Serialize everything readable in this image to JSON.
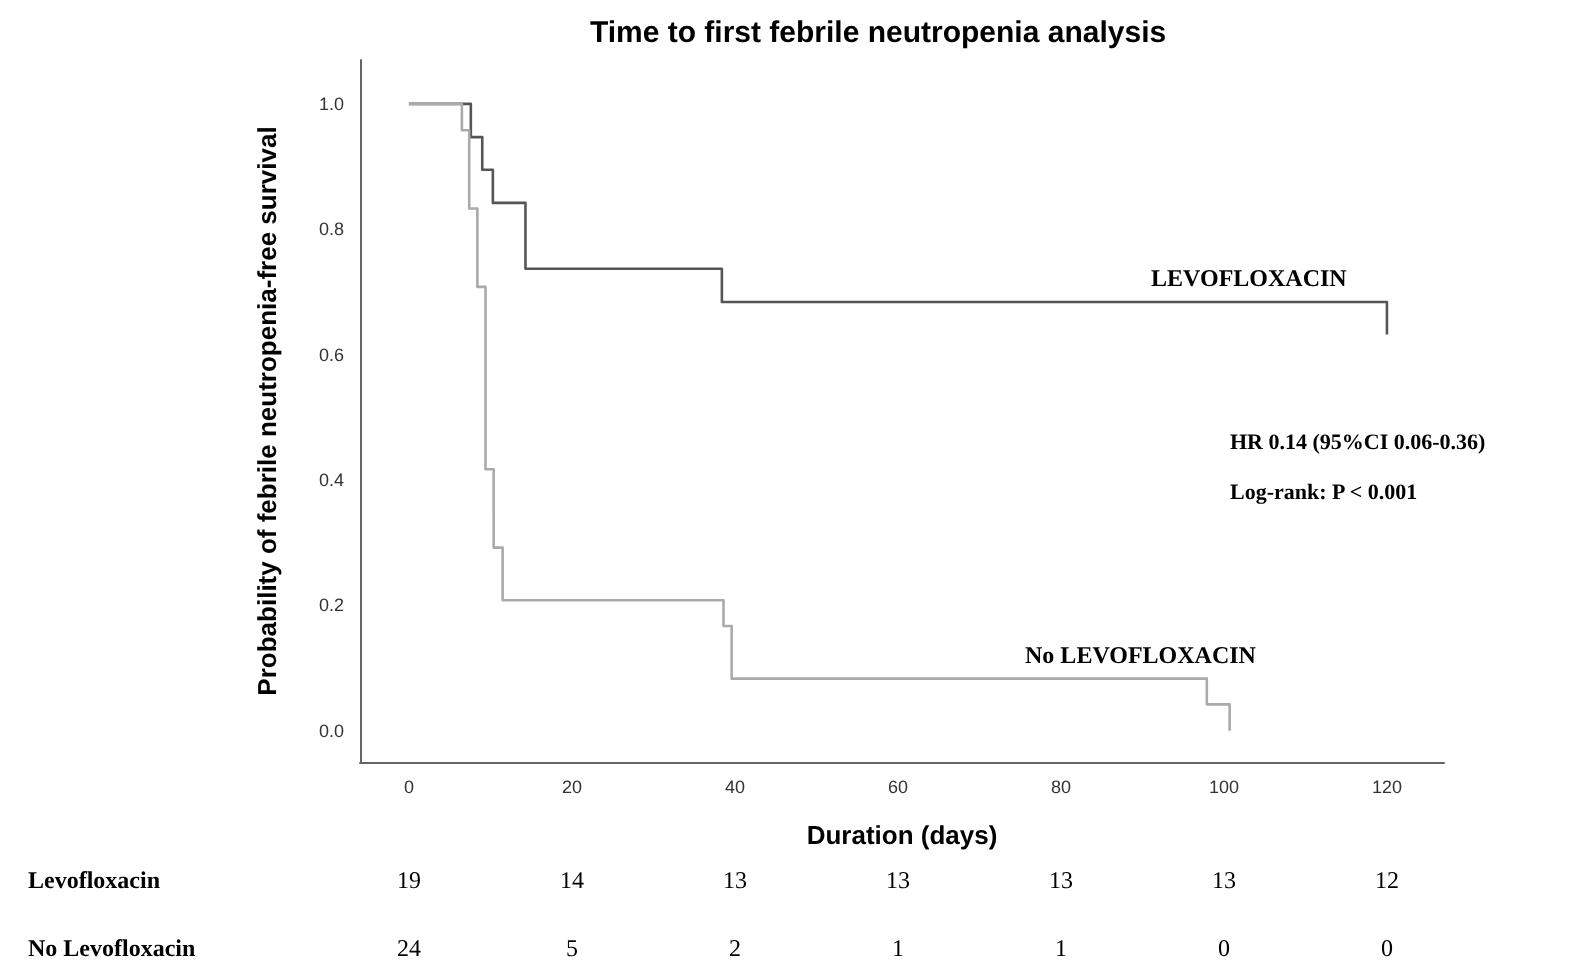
{
  "chart_data": {
    "type": "step",
    "title": "Time to first febrile neutropenia analysis",
    "xlabel": "Duration (days)",
    "ylabel": "Probability of febrile neutropenia-free survival",
    "series": [
      {
        "name": "LEVOFLOXACIN",
        "color": "#555555",
        "x": [
          0,
          7.6,
          9,
          10.3,
          14.3,
          38.4,
          120,
          120
        ],
        "values": [
          1,
          0.947,
          0.895,
          0.842,
          0.737,
          0.684,
          0.684,
          0.632
        ]
      },
      {
        "name": "No LEVOFLOXACIN",
        "color": "#aaaaaa",
        "x": [
          0,
          6.5,
          7.4,
          8.4,
          9.4,
          10.4,
          11.5,
          38.6,
          39.6,
          97.9,
          100.7
        ],
        "values": [
          1,
          0.958,
          0.833,
          0.708,
          0.417,
          0.292,
          0.208,
          0.167,
          0.083,
          0.042,
          0
        ]
      }
    ],
    "xlim": [
      -6,
      127
    ],
    "xticks": [
      0,
      20,
      40,
      60,
      80,
      100,
      120
    ],
    "ylim": [
      -0.05,
      1.07
    ],
    "yticks": [
      {
        "value": 0,
        "label": "0.0"
      },
      {
        "value": 0.2,
        "label": "0.2"
      },
      {
        "value": 0.4,
        "label": "0.4"
      },
      {
        "value": 0.6,
        "label": "0.6"
      },
      {
        "value": 0.8,
        "label": "0.8"
      },
      {
        "value": 1,
        "label": "1.0"
      }
    ],
    "grid": false,
    "legend": false,
    "marker": "none",
    "line_style": "solid",
    "annotations": [
      "HR 0.14 (95%CI 0.06-0.36)",
      "Log-rank: P < 0.001",
      "Levofloxacin",
      "19",
      "14",
      "13",
      "13",
      "13",
      "13",
      "12",
      "No Levofloxacin",
      "24",
      "5",
      "2",
      "1",
      "1",
      "0",
      "0"
    ]
  }
}
